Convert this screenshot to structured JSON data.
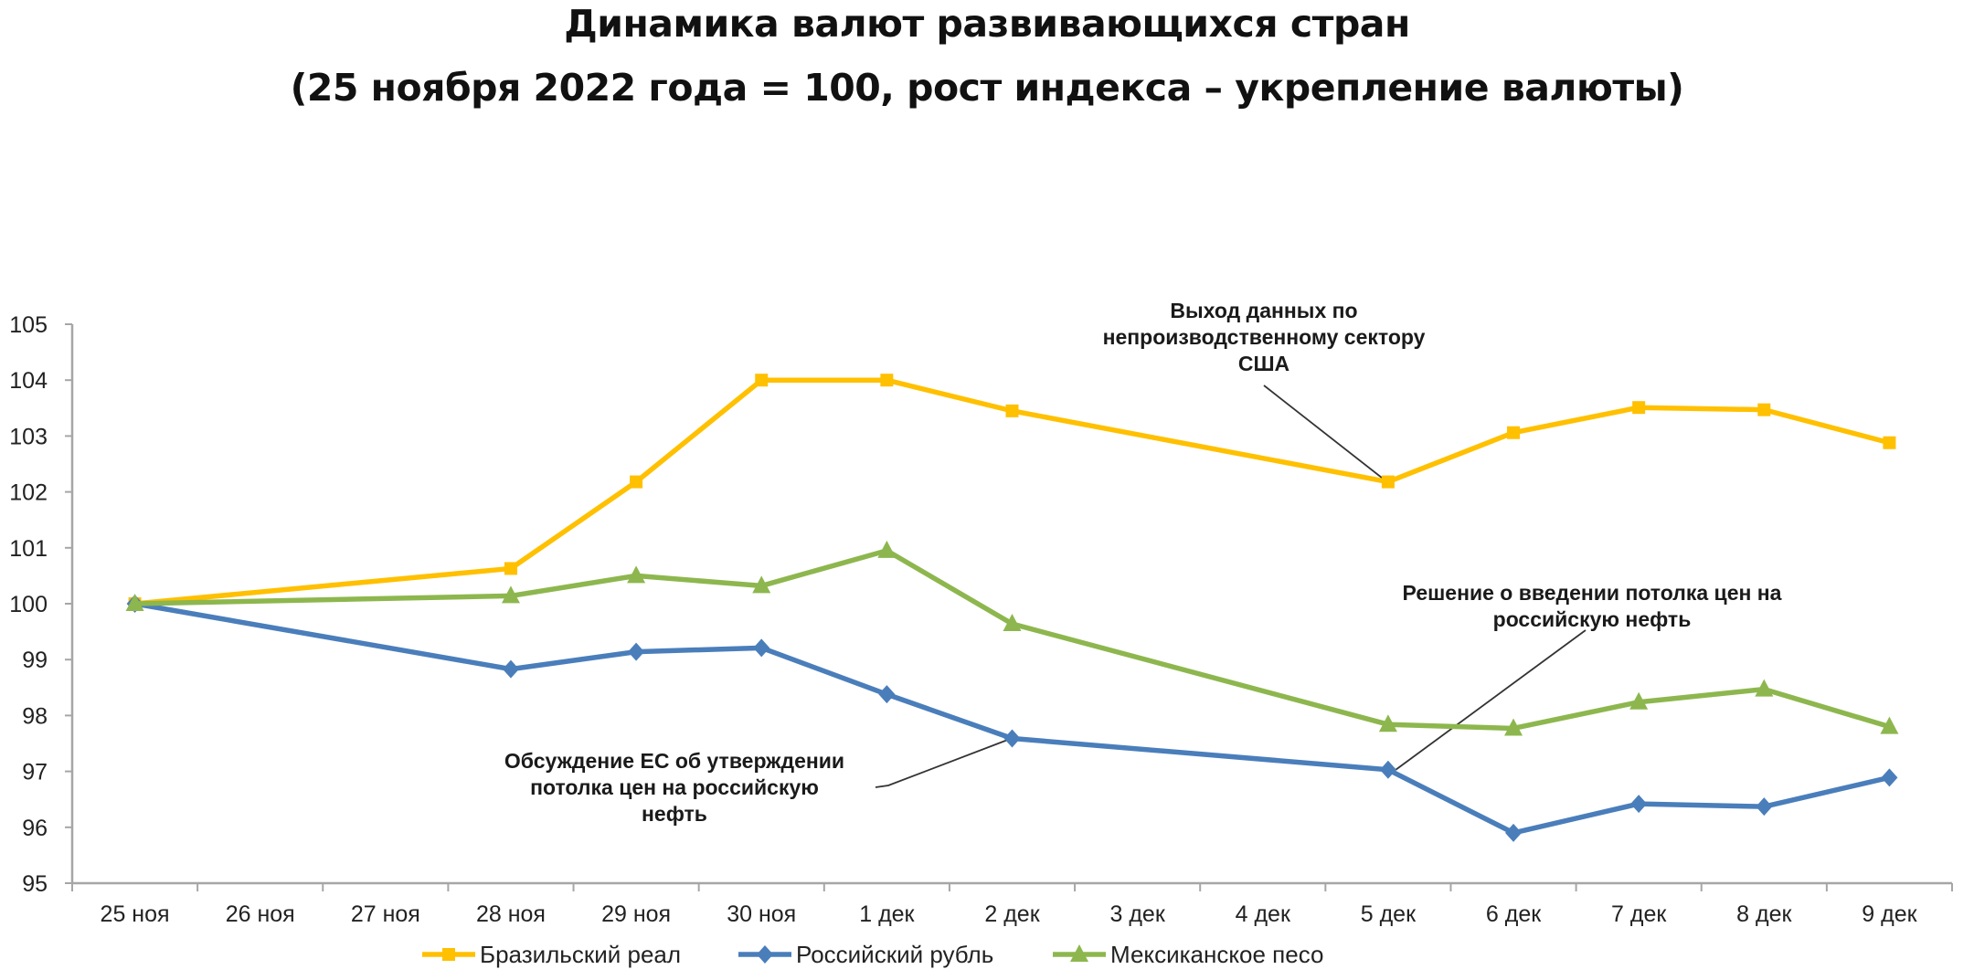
{
  "header": {
    "title": "Динамика валют развивающихся стран",
    "subtitle": "(25 ноября 2022 года = 100, рост индекса – укрепление валюты)"
  },
  "colors": {
    "brl": "#FFC000",
    "rub": "#4A7EBB",
    "mxn": "#8DB74E",
    "axis": "#A6A6A6",
    "annotation_line": "#333333"
  },
  "chart_data": {
    "type": "line",
    "title": "Динамика валют развивающихся стран",
    "subtitle": "(25 ноября 2022 года = 100, рост индекса – укрепление валюты)",
    "xlabel": "",
    "ylabel": "",
    "ylim": [
      95,
      105
    ],
    "yticks": [
      95,
      96,
      97,
      98,
      99,
      100,
      101,
      102,
      103,
      104,
      105
    ],
    "grid": false,
    "legend_position": "bottom",
    "categories": [
      "25 ноя",
      "26 ноя",
      "27 ноя",
      "28 ноя",
      "29 ноя",
      "30 ноя",
      "1 дек",
      "2 дек",
      "3 дек",
      "4 дек",
      "5 дек",
      "6 дек",
      "7 дек",
      "8 дек",
      "9 дек"
    ],
    "series": [
      {
        "name": "Бразильский реал",
        "color": "#FFC000",
        "marker": "square",
        "values": [
          100.0,
          null,
          null,
          100.63,
          102.18,
          104.0,
          104.0,
          103.45,
          null,
          null,
          102.18,
          103.06,
          103.51,
          103.47,
          102.88
        ]
      },
      {
        "name": "Российский рубль",
        "color": "#4A7EBB",
        "marker": "diamond",
        "values": [
          100.0,
          null,
          null,
          98.83,
          99.14,
          99.21,
          98.38,
          97.59,
          null,
          null,
          97.03,
          95.9,
          96.42,
          96.37,
          96.89
        ]
      },
      {
        "name": "Мексиканское песо",
        "color": "#8DB74E",
        "marker": "triangle",
        "values": [
          100.0,
          null,
          null,
          100.14,
          100.5,
          100.32,
          100.95,
          99.64,
          null,
          null,
          97.84,
          97.77,
          98.24,
          98.47,
          97.8
        ]
      }
    ],
    "annotations": [
      {
        "lines": [
          "Выход  данных по",
          "непроизводственному сектору",
          "США"
        ],
        "target_series": 0,
        "target_category": "5 дек"
      },
      {
        "lines": [
          "Решение о введении потолка цен на",
          "российскую нефть"
        ],
        "target_series": 1,
        "target_category": "5 дек"
      },
      {
        "lines": [
          "Обсуждение ЕС об утверждении",
          "потолка цен на российскую",
          "нефть"
        ],
        "target_series": 1,
        "target_category": "2 дек"
      }
    ]
  }
}
